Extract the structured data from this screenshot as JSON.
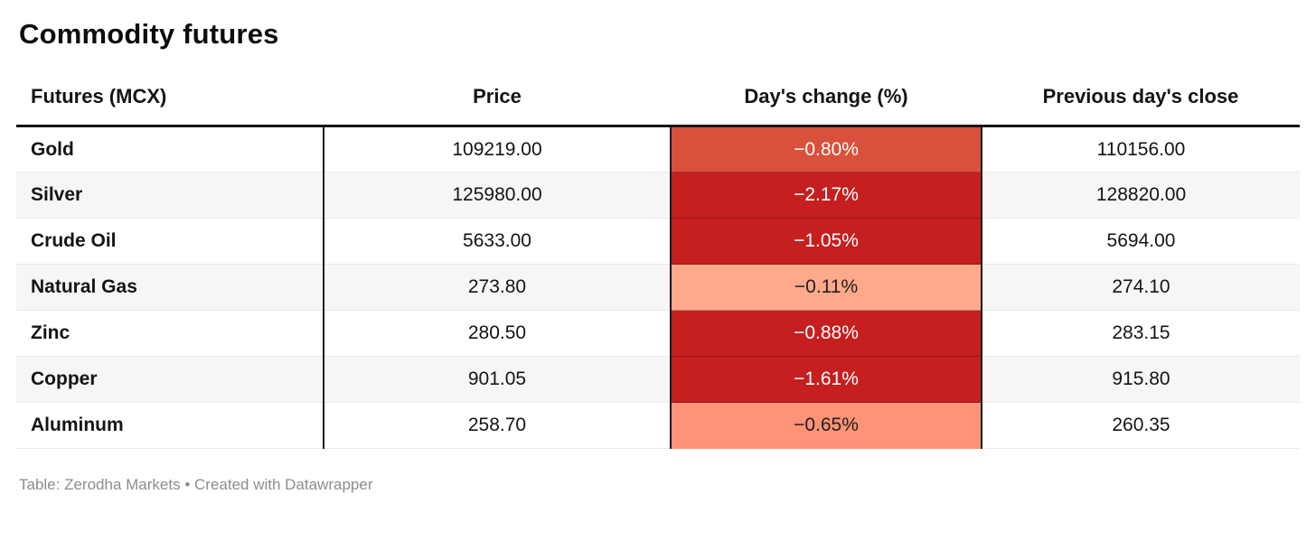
{
  "title": "Commodity futures",
  "table": {
    "columns": [
      "Futures (MCX)",
      "Price",
      "Day's change (%)",
      "Previous day's close"
    ],
    "rows": [
      {
        "name": "Gold",
        "price": "109219.00",
        "change": "−0.80%",
        "prev_close": "110156.00",
        "change_bg": "#d9503c",
        "change_fg": "#ffffff"
      },
      {
        "name": "Silver",
        "price": "125980.00",
        "change": "−2.17%",
        "prev_close": "128820.00",
        "change_bg": "#c51f1f",
        "change_fg": "#ffffff"
      },
      {
        "name": "Crude Oil",
        "price": "5633.00",
        "change": "−1.05%",
        "prev_close": "5694.00",
        "change_bg": "#c51f1f",
        "change_fg": "#ffffff"
      },
      {
        "name": "Natural Gas",
        "price": "273.80",
        "change": "−0.11%",
        "prev_close": "274.10",
        "change_bg": "#ffa98c",
        "change_fg": "#1f1f1f"
      },
      {
        "name": "Zinc",
        "price": "280.50",
        "change": "−0.88%",
        "prev_close": "283.15",
        "change_bg": "#c51f1f",
        "change_fg": "#ffffff"
      },
      {
        "name": "Copper",
        "price": "901.05",
        "change": "−1.61%",
        "prev_close": "915.80",
        "change_bg": "#c51f1f",
        "change_fg": "#ffffff"
      },
      {
        "name": "Aluminum",
        "price": "258.70",
        "change": "−0.65%",
        "prev_close": "260.35",
        "change_bg": "#fe9377",
        "change_fg": "#1f1f1f"
      }
    ]
  },
  "footer": {
    "prefix": "Table: ",
    "source": "Zerodha Markets",
    "separator": " • ",
    "credit": "Created with Datawrapper"
  },
  "colors": {
    "negative_strong": "#c51f1f",
    "negative_medium": "#d9503c",
    "negative_light": "#ffa98c",
    "negative_light_2": "#fe9377",
    "alt_row": "#f6f6f6",
    "border_dark": "#1b1b1b",
    "footer_gray": "#8c8c8c"
  },
  "chart_data": {
    "type": "table",
    "title": "Commodity futures",
    "columns": [
      "Futures (MCX)",
      "Price",
      "Day's change (%)",
      "Previous day's close"
    ],
    "rows": [
      [
        "Gold",
        109219.0,
        -0.8,
        110156.0
      ],
      [
        "Silver",
        125980.0,
        -2.17,
        128820.0
      ],
      [
        "Crude Oil",
        5633.0,
        -1.05,
        5694.0
      ],
      [
        "Natural Gas",
        273.8,
        -0.11,
        274.1
      ],
      [
        "Zinc",
        280.5,
        -0.88,
        283.15
      ],
      [
        "Copper",
        901.05,
        -1.61,
        915.8
      ],
      [
        "Aluminum",
        258.7,
        -0.65,
        260.35
      ]
    ],
    "heatmap_column": "Day's change (%)",
    "notes": "Table: Zerodha Markets • Created with Datawrapper"
  }
}
